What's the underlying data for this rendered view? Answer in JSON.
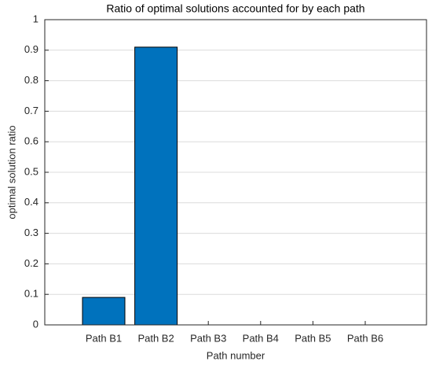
{
  "chart_data": {
    "type": "bar",
    "title": "Ratio of optimal solutions accounted for by each path",
    "x_label": "Path number",
    "y_label": "optimal solution ratio",
    "categories": [
      "Path B1",
      "Path B2",
      "Path B3",
      "Path B4",
      "Path B5",
      "Path B6"
    ],
    "values": [
      0.09,
      0.91,
      0,
      0,
      0,
      0
    ],
    "color": "#0072bd",
    "ylim": [
      0,
      1
    ],
    "yticks": [
      0,
      0.1,
      0.2,
      0.3,
      0.4,
      0.5,
      0.6,
      0.7,
      0.8,
      0.9,
      1
    ],
    "grid": true
  }
}
